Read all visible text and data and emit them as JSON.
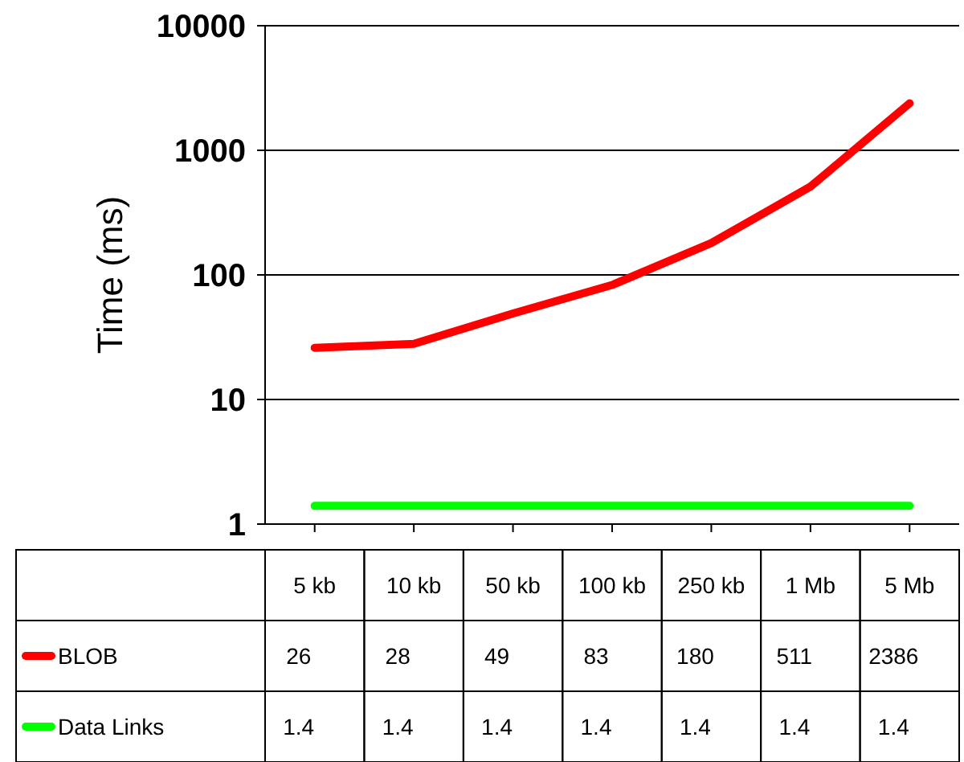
{
  "chart_data": {
    "type": "line",
    "ylabel": "Time (ms)",
    "categories": [
      "5 kb",
      "10 kb",
      "50 kb",
      "100 kb",
      "250 kb",
      "1 Mb",
      "5 Mb"
    ],
    "series": [
      {
        "name": "BLOB",
        "color": "#ff0000",
        "values": [
          26,
          28,
          49,
          83,
          180,
          511,
          2386
        ]
      },
      {
        "name": "Data Links",
        "color": "#00ff00",
        "values": [
          1.4,
          1.4,
          1.4,
          1.4,
          1.4,
          1.4,
          1.4
        ]
      }
    ],
    "log": true,
    "ylim": [
      1,
      10000
    ],
    "yticks": [
      1,
      10,
      100,
      1000,
      10000
    ],
    "grid": "y",
    "legend": "bottom",
    "data_labels": true,
    "marker": "none",
    "line_style": "solid"
  }
}
